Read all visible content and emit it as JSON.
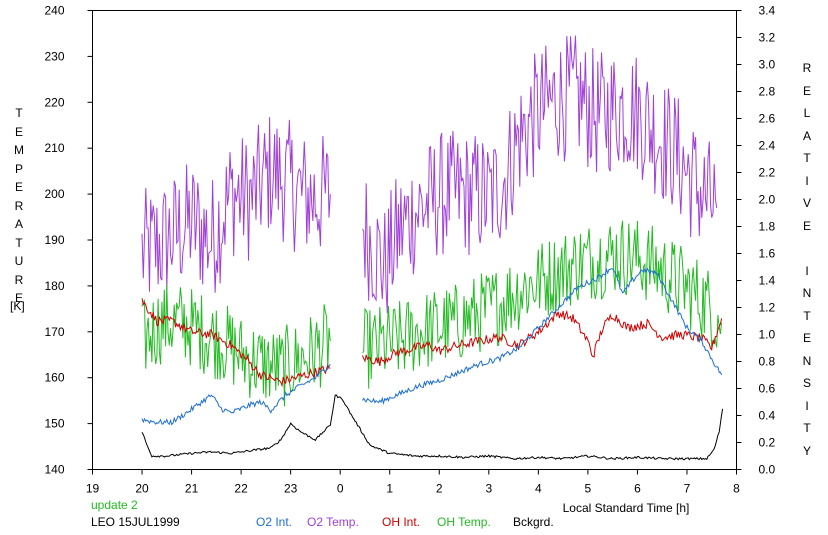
{
  "chart_data": {
    "type": "line",
    "left_axis": {
      "label": "TEMPERATURE",
      "unit": "[K]",
      "ticks": [
        140,
        150,
        160,
        170,
        180,
        190,
        200,
        210,
        220,
        230,
        240
      ],
      "range": [
        140,
        240
      ]
    },
    "right_axis": {
      "label": "RELATIVE INTENSITY",
      "ticks": [
        "0.0",
        "0.2",
        "0.4",
        "0.6",
        "0.8",
        "1.0",
        "1.2",
        "1.4",
        "1.6",
        "1.8",
        "2.0",
        "2.2",
        "2.4",
        "2.6",
        "2.8",
        "3.0",
        "3.2",
        "3.4"
      ],
      "range": [
        0,
        3.4
      ]
    },
    "x_axis": {
      "label": "Local Standard Time [h]",
      "ticks": [
        "19",
        "20",
        "21",
        "22",
        "23",
        "0",
        "1",
        "2",
        "3",
        "4",
        "5",
        "6",
        "7",
        "8"
      ],
      "range": [
        19,
        32
      ]
    },
    "annotations": {
      "update": "update 2",
      "station": "LEO 15JUL1999"
    },
    "legend": [
      {
        "label": "O2 Int.",
        "color": "#1c6fd0"
      },
      {
        "label": "O2 Temp.",
        "color": "#a040d8"
      },
      {
        "label": "OH Int.",
        "color": "#d00000"
      },
      {
        "label": "OH Temp.",
        "color": "#22bb22"
      },
      {
        "label": "Bckgrd.",
        "color": "#000000"
      }
    ],
    "series": [
      {
        "name": "O2 Temp.",
        "axis": "left",
        "color": "#a040d8",
        "noise": 14,
        "points": [
          [
            20.0,
            187
          ],
          [
            20.5,
            190
          ],
          [
            21.0,
            194
          ],
          [
            21.4,
            190
          ],
          [
            21.8,
            200
          ],
          [
            22.2,
            199
          ],
          [
            22.6,
            205
          ],
          [
            22.9,
            203
          ],
          [
            23.2,
            200
          ],
          [
            23.5,
            199
          ],
          [
            23.8,
            200
          ],
          null,
          [
            24.45,
            193
          ],
          [
            24.9,
            184
          ],
          [
            25.2,
            192
          ],
          [
            25.5,
            196
          ],
          [
            25.8,
            198
          ],
          [
            26.0,
            200
          ],
          [
            26.4,
            200
          ],
          [
            26.8,
            200
          ],
          [
            27.0,
            199
          ],
          [
            27.3,
            203
          ],
          [
            27.6,
            212
          ],
          [
            28.0,
            218
          ],
          [
            28.4,
            221
          ],
          [
            28.8,
            221
          ],
          [
            29.2,
            217
          ],
          [
            29.6,
            219
          ],
          [
            30.0,
            218
          ],
          [
            30.4,
            213
          ],
          [
            30.7,
            210
          ],
          [
            31.0,
            205
          ],
          [
            31.3,
            200
          ],
          [
            31.6,
            197
          ]
        ]
      },
      {
        "name": "OH Temp.",
        "axis": "left",
        "color": "#22bb22",
        "noise": 9,
        "points": [
          [
            20.0,
            168
          ],
          [
            20.4,
            172
          ],
          [
            20.8,
            172
          ],
          [
            21.2,
            170
          ],
          [
            21.6,
            168
          ],
          [
            22.0,
            165
          ],
          [
            22.4,
            163
          ],
          [
            22.8,
            162
          ],
          [
            23.2,
            164
          ],
          [
            23.5,
            166
          ],
          [
            23.8,
            168
          ],
          null,
          [
            24.45,
            166
          ],
          [
            24.8,
            167
          ],
          [
            25.2,
            168
          ],
          [
            25.6,
            170
          ],
          [
            26.0,
            171
          ],
          [
            26.4,
            172
          ],
          [
            26.8,
            174
          ],
          [
            27.2,
            176
          ],
          [
            27.6,
            179
          ],
          [
            28.0,
            181
          ],
          [
            28.4,
            183
          ],
          [
            28.8,
            185
          ],
          [
            29.2,
            186
          ],
          [
            29.6,
            187
          ],
          [
            30.0,
            186
          ],
          [
            30.4,
            184
          ],
          [
            30.8,
            181
          ],
          [
            31.2,
            178
          ],
          [
            31.5,
            175
          ],
          [
            31.7,
            172
          ]
        ]
      },
      {
        "name": "OH Int.",
        "axis": "right",
        "color": "#d00000",
        "noise": 0.035,
        "points": [
          [
            20.0,
            1.25
          ],
          [
            20.3,
            1.1
          ],
          [
            20.6,
            1.1
          ],
          [
            21.0,
            1.02
          ],
          [
            21.4,
            1.0
          ],
          [
            21.8,
            0.92
          ],
          [
            22.1,
            0.82
          ],
          [
            22.4,
            0.7
          ],
          [
            22.8,
            0.65
          ],
          [
            23.1,
            0.68
          ],
          [
            23.5,
            0.72
          ],
          [
            23.8,
            0.75
          ],
          null,
          [
            24.45,
            0.83
          ],
          [
            24.8,
            0.8
          ],
          [
            25.1,
            0.86
          ],
          [
            25.5,
            0.9
          ],
          [
            25.8,
            0.92
          ],
          [
            26.0,
            0.88
          ],
          [
            26.4,
            0.92
          ],
          [
            26.8,
            0.95
          ],
          [
            27.2,
            0.98
          ],
          [
            27.6,
            0.92
          ],
          [
            28.0,
            1.02
          ],
          [
            28.4,
            1.16
          ],
          [
            28.7,
            1.12
          ],
          [
            29.0,
            0.95
          ],
          [
            29.1,
            0.84
          ],
          [
            29.3,
            1.05
          ],
          [
            29.5,
            1.15
          ],
          [
            29.8,
            1.05
          ],
          [
            30.2,
            1.08
          ],
          [
            30.5,
            0.98
          ],
          [
            30.9,
            1.0
          ],
          [
            31.3,
            0.97
          ],
          [
            31.5,
            0.9
          ],
          [
            31.7,
            1.12
          ]
        ]
      },
      {
        "name": "O2 Int.",
        "axis": "right",
        "color": "#1c6fd0",
        "noise": 0.02,
        "points": [
          [
            20.0,
            0.37
          ],
          [
            20.3,
            0.35
          ],
          [
            20.6,
            0.35
          ],
          [
            20.9,
            0.42
          ],
          [
            21.2,
            0.5
          ],
          [
            21.4,
            0.55
          ],
          [
            21.6,
            0.45
          ],
          [
            21.8,
            0.42
          ],
          [
            22.0,
            0.45
          ],
          [
            22.2,
            0.48
          ],
          [
            22.4,
            0.5
          ],
          [
            22.6,
            0.44
          ],
          [
            22.9,
            0.55
          ],
          [
            23.2,
            0.62
          ],
          [
            23.5,
            0.68
          ],
          [
            23.8,
            0.78
          ],
          null,
          [
            24.45,
            0.52
          ],
          [
            24.8,
            0.5
          ],
          [
            25.2,
            0.56
          ],
          [
            25.6,
            0.62
          ],
          [
            26.0,
            0.66
          ],
          [
            26.4,
            0.72
          ],
          [
            26.8,
            0.78
          ],
          [
            27.2,
            0.82
          ],
          [
            27.6,
            0.9
          ],
          [
            28.0,
            1.05
          ],
          [
            28.4,
            1.2
          ],
          [
            28.8,
            1.35
          ],
          [
            29.2,
            1.42
          ],
          [
            29.5,
            1.5
          ],
          [
            29.7,
            1.3
          ],
          [
            29.9,
            1.4
          ],
          [
            30.1,
            1.48
          ],
          [
            30.4,
            1.45
          ],
          [
            30.7,
            1.25
          ],
          [
            31.0,
            1.05
          ],
          [
            31.3,
            0.95
          ],
          [
            31.5,
            0.82
          ],
          [
            31.7,
            0.7
          ]
        ]
      },
      {
        "name": "Bckgrd.",
        "axis": "right",
        "color": "#000000",
        "noise": 0.008,
        "points": [
          [
            20.0,
            0.28
          ],
          [
            20.1,
            0.18
          ],
          [
            20.2,
            0.1
          ],
          [
            20.5,
            0.1
          ],
          [
            21.0,
            0.12
          ],
          [
            21.4,
            0.13
          ],
          [
            21.8,
            0.12
          ],
          [
            22.2,
            0.14
          ],
          [
            22.6,
            0.16
          ],
          [
            22.8,
            0.22
          ],
          [
            23.0,
            0.34
          ],
          [
            23.2,
            0.28
          ],
          [
            23.5,
            0.22
          ],
          [
            23.8,
            0.33
          ],
          [
            23.9,
            0.55
          ],
          [
            24.05,
            0.52
          ],
          [
            24.2,
            0.42
          ],
          [
            24.4,
            0.3
          ],
          [
            24.6,
            0.18
          ],
          [
            25.0,
            0.12
          ],
          [
            25.5,
            0.1
          ],
          [
            26.0,
            0.1
          ],
          [
            26.5,
            0.09
          ],
          [
            27.0,
            0.1
          ],
          [
            27.5,
            0.08
          ],
          [
            28.0,
            0.09
          ],
          [
            28.5,
            0.08
          ],
          [
            29.0,
            0.1
          ],
          [
            29.5,
            0.08
          ],
          [
            30.0,
            0.09
          ],
          [
            30.5,
            0.08
          ],
          [
            31.0,
            0.08
          ],
          [
            31.4,
            0.08
          ],
          [
            31.55,
            0.15
          ],
          [
            31.65,
            0.28
          ],
          [
            31.72,
            0.45
          ]
        ]
      }
    ]
  }
}
